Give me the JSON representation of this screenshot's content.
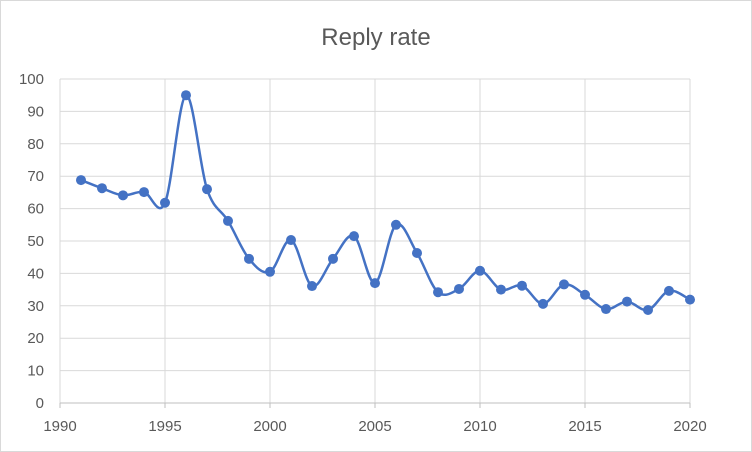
{
  "chart_data": {
    "type": "line",
    "title": "Reply rate",
    "xlabel": "",
    "ylabel": "",
    "xlim": [
      1990,
      2020
    ],
    "ylim": [
      0,
      100
    ],
    "x_ticks": [
      "1990",
      "1995",
      "2000",
      "2005",
      "2010",
      "2015",
      "2020"
    ],
    "y_ticks": [
      "0",
      "10",
      "20",
      "30",
      "40",
      "50",
      "60",
      "70",
      "80",
      "90",
      "100"
    ],
    "grid": true,
    "legend": "none",
    "smooth": true,
    "color": "#4472c4",
    "series": [
      {
        "x": [
          1991,
          1992,
          1993,
          1994,
          1995,
          1996,
          1997,
          1998,
          1999,
          2000,
          2001,
          2002,
          2003,
          2004,
          2005,
          2006,
          2007,
          2008,
          2009,
          2010,
          2011,
          2012,
          2013,
          2014,
          2015,
          2016,
          2017,
          2018,
          2019,
          2020
        ],
        "values": [
          68.8,
          66.3,
          64.1,
          65.1,
          61.8,
          95.0,
          66.0,
          56.2,
          44.5,
          40.5,
          50.3,
          36.1,
          44.5,
          51.5,
          37.0,
          55.0,
          46.3,
          34.2,
          35.2,
          40.8,
          35.0,
          36.2,
          30.6,
          36.6,
          33.4,
          29.0,
          31.3,
          28.7,
          34.6,
          31.9
        ]
      }
    ]
  }
}
